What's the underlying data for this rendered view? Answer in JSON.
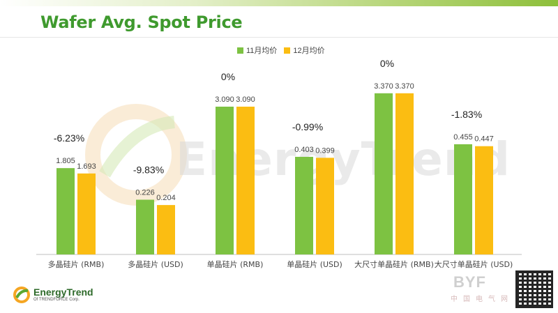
{
  "title": "Wafer Avg. Spot Price",
  "legend": {
    "nov": "11月均价",
    "dec": "12月均价"
  },
  "colors": {
    "nov": "#7dc242",
    "dec": "#fbbd12",
    "title": "#3f9a2e"
  },
  "watermark": "EnergyTrend",
  "logo": {
    "name": "EnergyTrend",
    "sub": "Of TRENDFORCE Corp."
  },
  "corner_watermark": {
    "brand": "BYF",
    "sub": "中国电气网"
  },
  "chart_data": {
    "type": "bar",
    "categories": [
      "多晶硅片 (RMB)",
      "多晶硅片 (USD)",
      "单晶硅片 (RMB)",
      "单晶硅片 (USD)",
      "大尺寸单晶硅片 (RMB)",
      "大尺寸单晶硅片 (USD)"
    ],
    "series": [
      {
        "name": "11月均价",
        "values": [
          1.805,
          0.226,
          3.09,
          0.403,
          3.37,
          0.455
        ],
        "labels": [
          "1.805",
          "0.226",
          "3.090",
          "0.403",
          "3.370",
          "0.455"
        ]
      },
      {
        "name": "12月均价",
        "values": [
          1.693,
          0.204,
          3.09,
          0.399,
          3.37,
          0.447
        ],
        "labels": [
          "1.693",
          "0.204",
          "3.090",
          "0.399",
          "3.370",
          "0.447"
        ]
      }
    ],
    "changes": [
      "-6.23%",
      "-9.83%",
      "0%",
      "-0.99%",
      "0%",
      "-1.83%"
    ],
    "scale_groups": [
      0,
      1,
      0,
      1,
      0,
      1
    ],
    "group_max": [
      3.95,
      0.78
    ],
    "legend_position": "top-center",
    "grid": false
  }
}
